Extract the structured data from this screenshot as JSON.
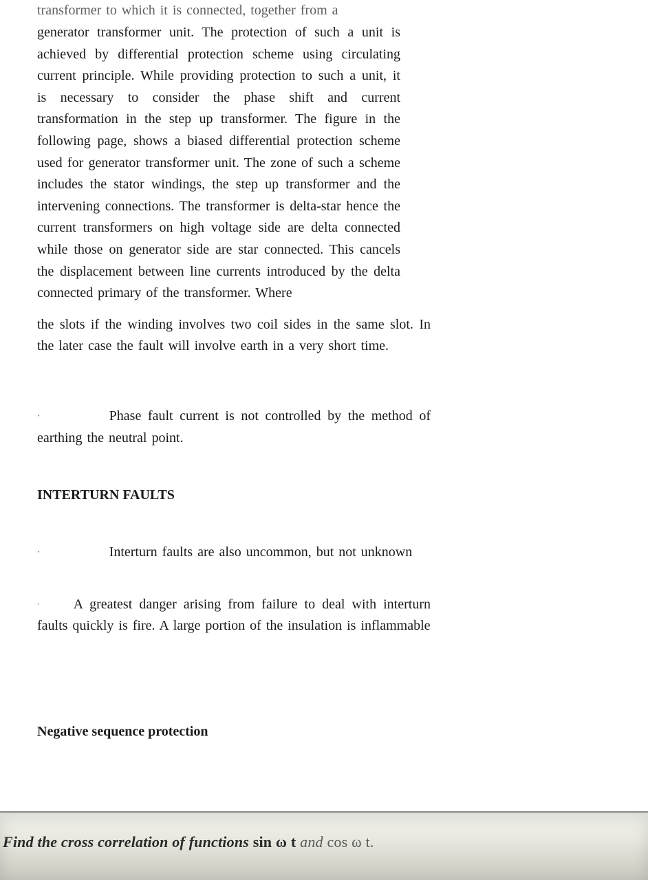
{
  "truncated_line": "transformer to which it is connected, together from a",
  "main_para": "generator transformer unit. The protection of such a unit is achieved by differential protection scheme using circulating current principle. While providing protection to such a unit, it is necessary to consider the phase shift and current transformation in the step up transformer. The figure in the following page, shows a biased differential protection scheme used for generator transformer unit. The zone of such a scheme includes the stator windings, the step up transformer and the intervening connections. The transformer is delta-star hence the current transformers on high voltage side are delta connected while those on generator side are star connected. This cancels the displacement between line currents introduced by the delta connected primary of the transformer. Where",
  "slots_para": "the slots if the winding involves two coil sides in the same slot. In the later case the fault will involve earth in a very short time.",
  "phase_fault_text": "Phase fault current is not controlled by the method of earthing the neutral point.",
  "heading_interturn": "INTERTURN FAULTS",
  "interturn_bullet1": "Interturn faults are also uncommon, but not unknown",
  "interturn_bullet2": "A greatest danger arising from failure to deal with interturn faults quickly is fire. A large portion of the insulation is inflammable",
  "heading_negseq": "Negative sequence protection",
  "footer_prefix": "Find the cross correlation of functions ",
  "footer_sin": "sin ω t",
  "footer_and": " and ",
  "footer_cos": "cos ω t."
}
